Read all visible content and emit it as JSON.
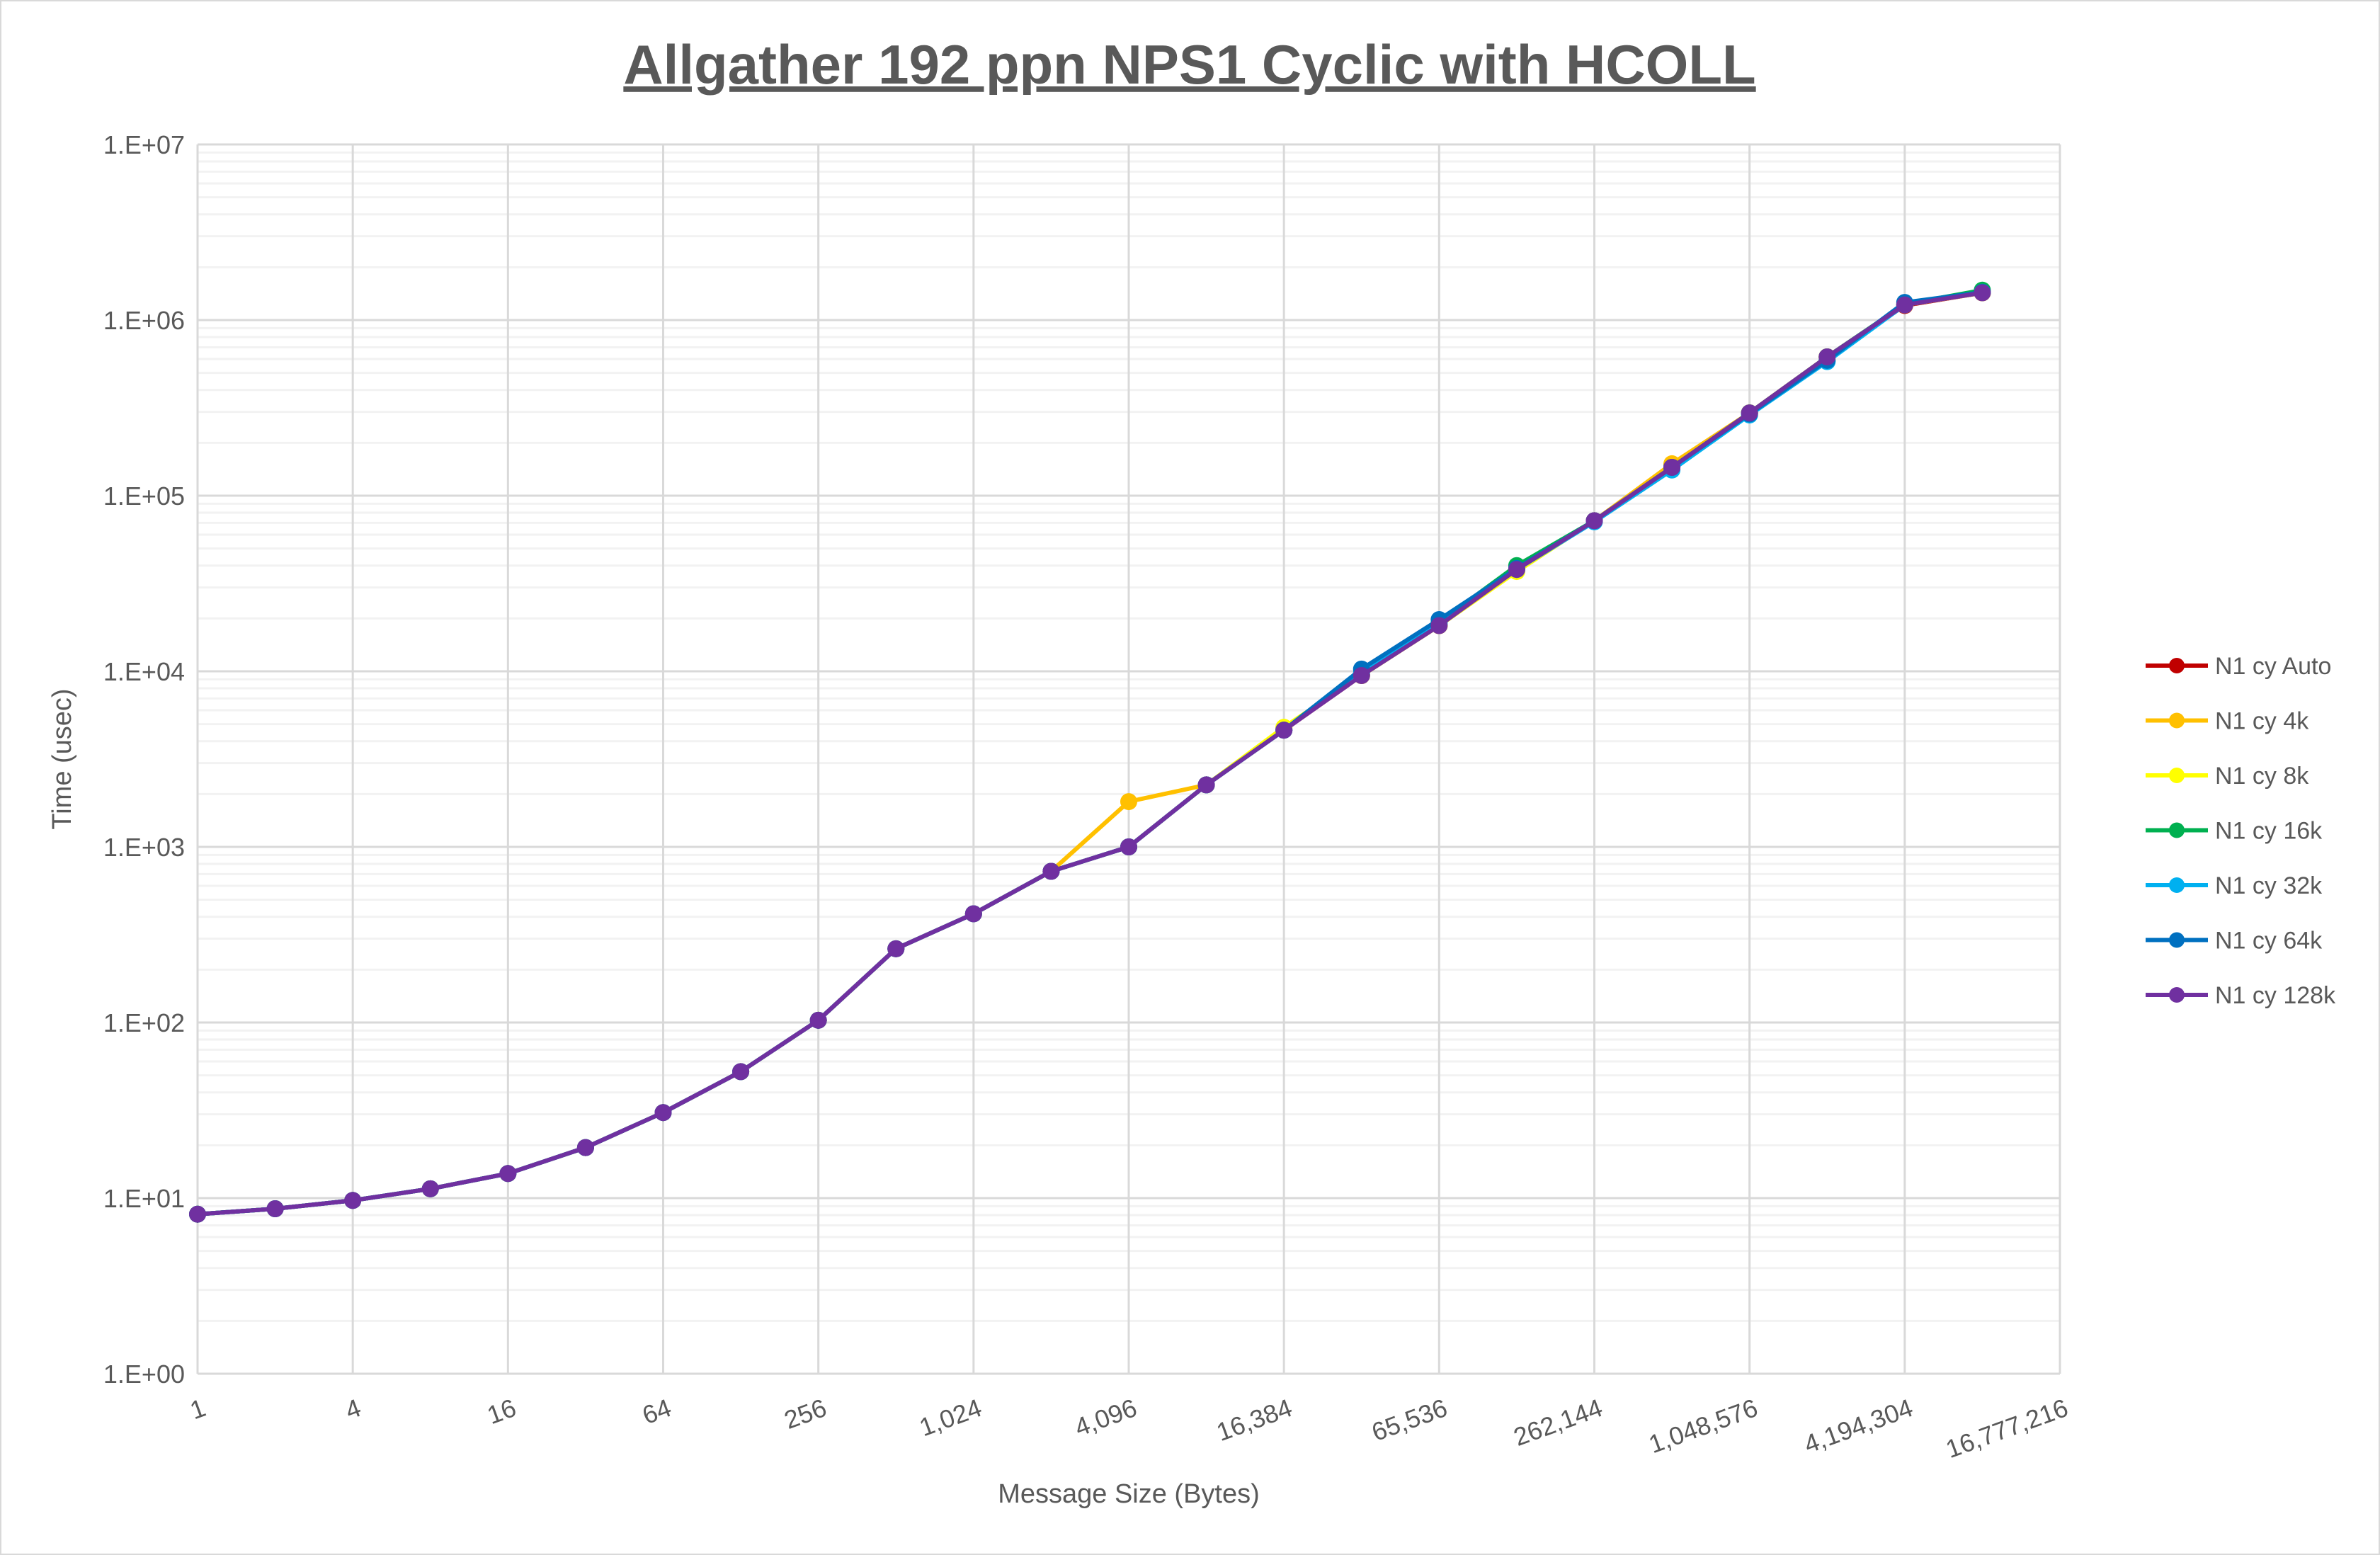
{
  "chart_data": {
    "type": "line",
    "title": "Allgather 192 ppn NPS1 Cyclic with HCOLL",
    "xlabel": "Message Size (Bytes)",
    "ylabel": "Time (usec)",
    "x_scale": "log2",
    "y_scale": "log10",
    "xlim": [
      1,
      16777216
    ],
    "ylim": [
      1,
      10000000
    ],
    "grid": true,
    "legend": "right",
    "x_tick_labels": [
      "1",
      "4",
      "16",
      "64",
      "256",
      "1,024",
      "4,096",
      "16,384",
      "65,536",
      "262,144",
      "1,048,576",
      "4,194,304",
      "16,777,216"
    ],
    "y_tick_labels": [
      "1.E+00",
      "1.E+01",
      "1.E+02",
      "1.E+03",
      "1.E+04",
      "1.E+05",
      "1.E+06",
      "1.E+07"
    ],
    "x": [
      1,
      2,
      4,
      8,
      16,
      32,
      64,
      128,
      256,
      512,
      1024,
      2048,
      4096,
      8192,
      16384,
      32768,
      65536,
      131072,
      262144,
      524288,
      1048576,
      2097152,
      4194304,
      8388608
    ],
    "series": [
      {
        "name": "N1 cy Auto",
        "color": "#C00000",
        "values": [
          8.1,
          8.7,
          9.7,
          11.3,
          13.8,
          19.4,
          30.7,
          52.5,
          103,
          263,
          416,
          726,
          1000,
          2255,
          4620,
          9460,
          18200,
          38000,
          72000,
          150000,
          296000,
          617000,
          1210000,
          1430000
        ]
      },
      {
        "name": "N1 cy 4k",
        "color": "#FFC000",
        "values": [
          8.1,
          8.7,
          9.7,
          11.3,
          13.8,
          19.4,
          30.7,
          52.5,
          103,
          263,
          416,
          726,
          1810,
          2255,
          4750,
          9460,
          18200,
          37500,
          72000,
          152000,
          296000,
          617000,
          1220000,
          1430000
        ]
      },
      {
        "name": "N1 cy 8k",
        "color": "#FFFF00",
        "values": [
          8.1,
          8.7,
          9.7,
          11.3,
          13.8,
          19.4,
          30.7,
          52.5,
          103,
          263,
          416,
          726,
          1000,
          2255,
          4800,
          9460,
          18200,
          37000,
          72000,
          145000,
          296000,
          617000,
          1220000,
          1430000
        ]
      },
      {
        "name": "N1 cy 16k",
        "color": "#00B050",
        "values": [
          8.1,
          8.7,
          9.7,
          11.3,
          13.8,
          19.4,
          30.7,
          52.5,
          103,
          263,
          416,
          726,
          1000,
          2255,
          4620,
          9600,
          19000,
          40000,
          72000,
          145000,
          296000,
          617000,
          1230000,
          1480000
        ]
      },
      {
        "name": "N1 cy 32k",
        "color": "#00B0F0",
        "values": [
          8.1,
          8.7,
          9.7,
          11.3,
          13.8,
          19.4,
          30.7,
          52.5,
          103,
          263,
          416,
          726,
          1000,
          2255,
          4620,
          9800,
          18600,
          38000,
          71000,
          140000,
          288000,
          580000,
          1220000,
          1440000
        ]
      },
      {
        "name": "N1 cy 64k",
        "color": "#0070C0",
        "values": [
          8.1,
          8.7,
          9.7,
          11.3,
          13.8,
          19.4,
          30.7,
          52.5,
          103,
          263,
          416,
          726,
          1000,
          2255,
          4620,
          10300,
          19700,
          38500,
          72000,
          145000,
          292000,
          590000,
          1260000,
          1440000
        ]
      },
      {
        "name": "N1 cy 128k",
        "color": "#7030A0",
        "values": [
          8.1,
          8.7,
          9.7,
          11.3,
          13.8,
          19.4,
          30.7,
          52.5,
          103,
          263,
          416,
          726,
          1000,
          2255,
          4620,
          9460,
          18200,
          38000,
          72000,
          145000,
          296000,
          617000,
          1220000,
          1430000
        ]
      }
    ]
  }
}
